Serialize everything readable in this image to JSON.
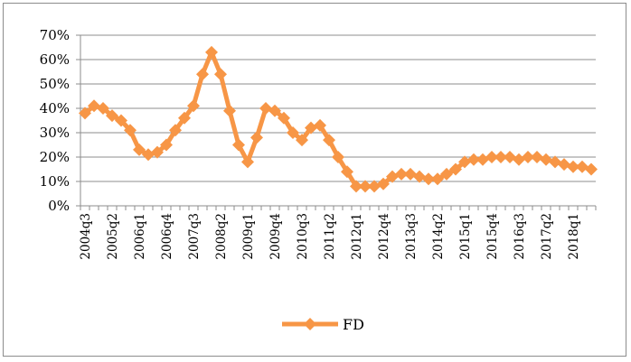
{
  "chart_data": {
    "type": "line",
    "title": "",
    "xlabel": "",
    "ylabel": "",
    "ylim": [
      0,
      70
    ],
    "y_tick_values": [
      0,
      10,
      20,
      30,
      40,
      50,
      60,
      70
    ],
    "y_tick_labels": [
      "0%",
      "10%",
      "20%",
      "30%",
      "40%",
      "50%",
      "60%",
      "70%"
    ],
    "grid": "horizontal",
    "legend": "bottom",
    "x": [
      "2004q3",
      "2004q4",
      "2005q1",
      "2005q2",
      "2005q3",
      "2005q4",
      "2006q1",
      "2006q2",
      "2006q3",
      "2006q4",
      "2007q1",
      "2007q2",
      "2007q3",
      "2007q4",
      "2008q1",
      "2008q2",
      "2008q3",
      "2008q4",
      "2009q1",
      "2009q2",
      "2009q3",
      "2009q4",
      "2010q1",
      "2010q2",
      "2010q3",
      "2010q4",
      "2011q1",
      "2011q2",
      "2011q3",
      "2011q4",
      "2012q1",
      "2012q2",
      "2012q3",
      "2012q4",
      "2013q1",
      "2013q2",
      "2013q3",
      "2013q4",
      "2014q1",
      "2014q2",
      "2014q3",
      "2014q4",
      "2015q1",
      "2015q2",
      "2015q3",
      "2015q4",
      "2016q1",
      "2016q2",
      "2016q3",
      "2016q4",
      "2017q1",
      "2017q2",
      "2017q3",
      "2017q4",
      "2018q1",
      "2018q2",
      "2018q3"
    ],
    "x_tick_labels_shown": [
      "2004q3",
      "2005q2",
      "2006q1",
      "2006q4",
      "2007q3",
      "2008q2",
      "2009q1",
      "2009q4",
      "2010q3",
      "2011q2",
      "2012q1",
      "2012q4",
      "2013q3",
      "2014q2",
      "2015q1",
      "2015q4",
      "2016q3",
      "2017q2",
      "2018q1"
    ],
    "series": [
      {
        "name": "FD",
        "color": "#f79646",
        "values": [
          38,
          41,
          40,
          37,
          35,
          31,
          23,
          21,
          22,
          25,
          31,
          36,
          41,
          54,
          63,
          54,
          39,
          25,
          18,
          28,
          40,
          39,
          36,
          30,
          27,
          32,
          33,
          27,
          20,
          14,
          8,
          8,
          8,
          9,
          12,
          13,
          13,
          12,
          11,
          11,
          13,
          15,
          18,
          19,
          19,
          20,
          20,
          20,
          19,
          20,
          20,
          19,
          18,
          17,
          16,
          16,
          15
        ]
      }
    ]
  }
}
